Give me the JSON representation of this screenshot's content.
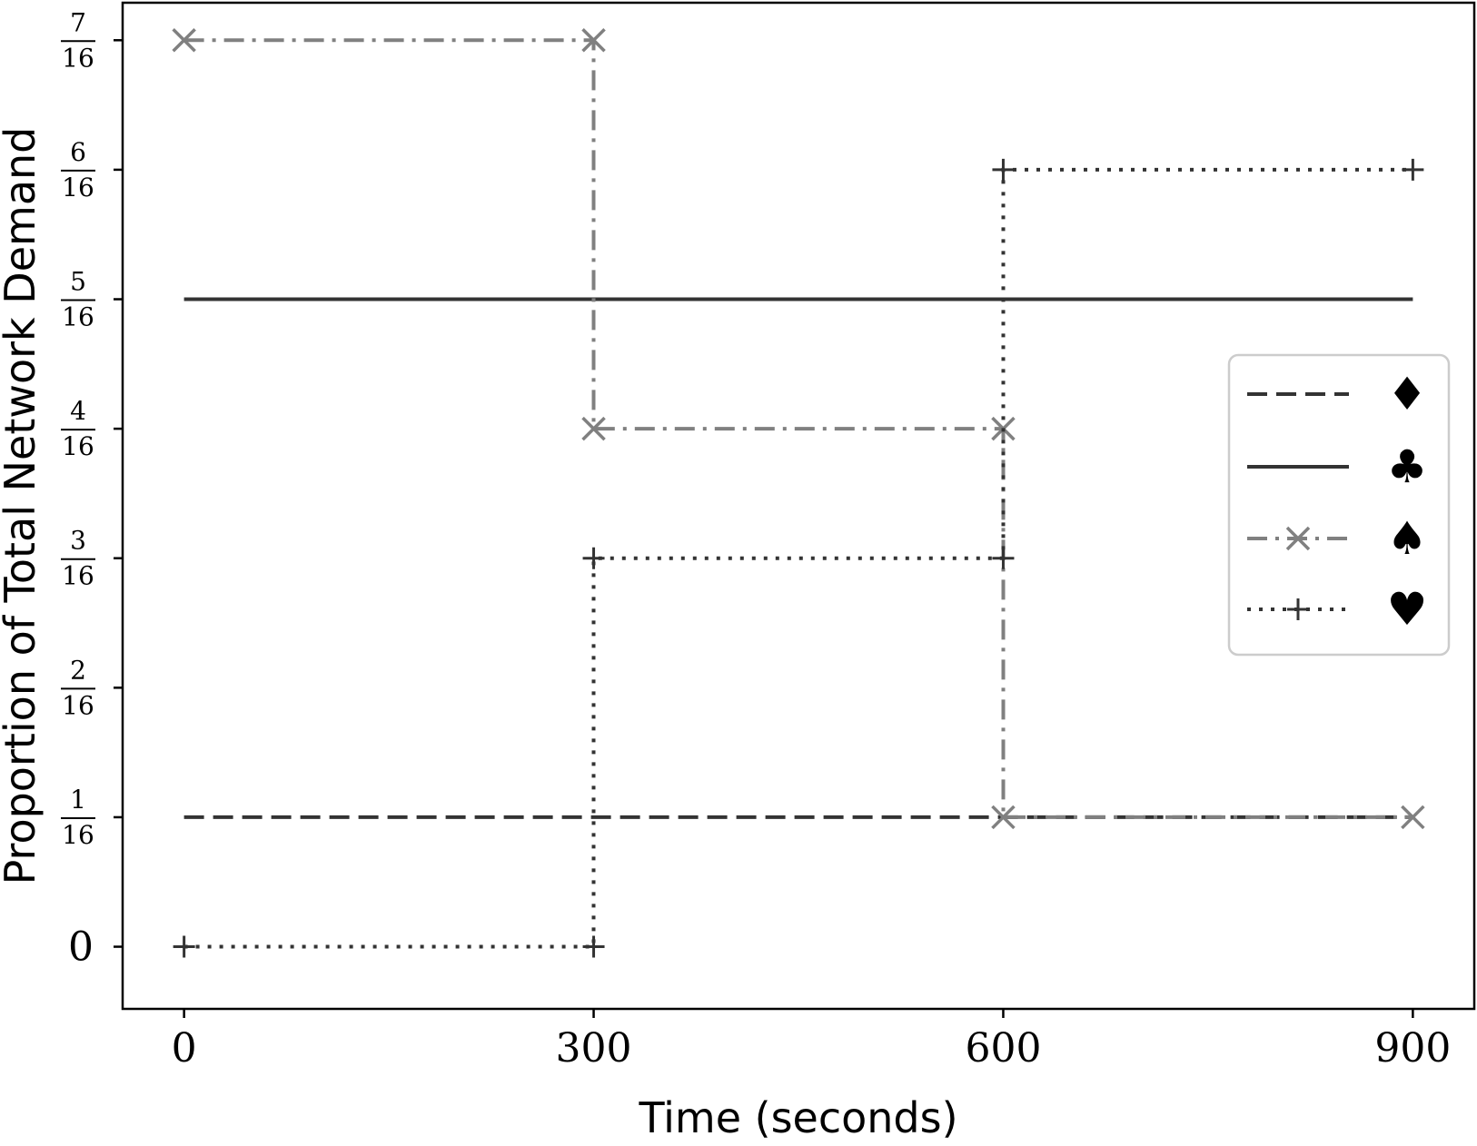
{
  "chart_data": {
    "type": "line",
    "xlabel": "Time (seconds)",
    "ylabel": "Proportion of Total Network Demand",
    "xlim": [
      -45,
      945
    ],
    "ylim": [
      -0.03,
      0.4556
    ],
    "xticks": [
      {
        "value": 0,
        "label": "0"
      },
      {
        "value": 300,
        "label": "300"
      },
      {
        "value": 600,
        "label": "600"
      },
      {
        "value": 900,
        "label": "900"
      }
    ],
    "yticks": [
      {
        "value": 0,
        "label": "0",
        "numerator": "",
        "denominator": ""
      },
      {
        "value": 0.0625,
        "label": "1/16",
        "numerator": "1",
        "denominator": "16"
      },
      {
        "value": 0.125,
        "label": "2/16",
        "numerator": "2",
        "denominator": "16"
      },
      {
        "value": 0.1875,
        "label": "3/16",
        "numerator": "3",
        "denominator": "16"
      },
      {
        "value": 0.25,
        "label": "4/16",
        "numerator": "4",
        "denominator": "16"
      },
      {
        "value": 0.3125,
        "label": "5/16",
        "numerator": "5",
        "denominator": "16"
      },
      {
        "value": 0.375,
        "label": "6/16",
        "numerator": "6",
        "denominator": "16"
      },
      {
        "value": 0.4375,
        "label": "7/16",
        "numerator": "7",
        "denominator": "16"
      }
    ],
    "grid": false,
    "legend_position": "center-right",
    "series": [
      {
        "name": "♦",
        "style": "dashed",
        "color": "#333333",
        "marker": "none",
        "points": [
          [
            0,
            0.0625
          ],
          [
            900,
            0.0625
          ]
        ]
      },
      {
        "name": "♣",
        "style": "solid",
        "color": "#333333",
        "marker": "none",
        "points": [
          [
            0,
            0.3125
          ],
          [
            900,
            0.3125
          ]
        ]
      },
      {
        "name": "♠",
        "style": "dashdot",
        "color": "#808080",
        "marker": "x",
        "points": [
          [
            0,
            0.4375
          ],
          [
            300,
            0.4375
          ],
          [
            300,
            0.25
          ],
          [
            600,
            0.25
          ],
          [
            600,
            0.0625
          ],
          [
            900,
            0.0625
          ]
        ]
      },
      {
        "name": "♥",
        "style": "dotted",
        "color": "#333333",
        "marker": "+",
        "points": [
          [
            0,
            0
          ],
          [
            300,
            0
          ],
          [
            300,
            0.1875
          ],
          [
            600,
            0.1875
          ],
          [
            600,
            0.375
          ],
          [
            900,
            0.375
          ]
        ]
      }
    ]
  }
}
